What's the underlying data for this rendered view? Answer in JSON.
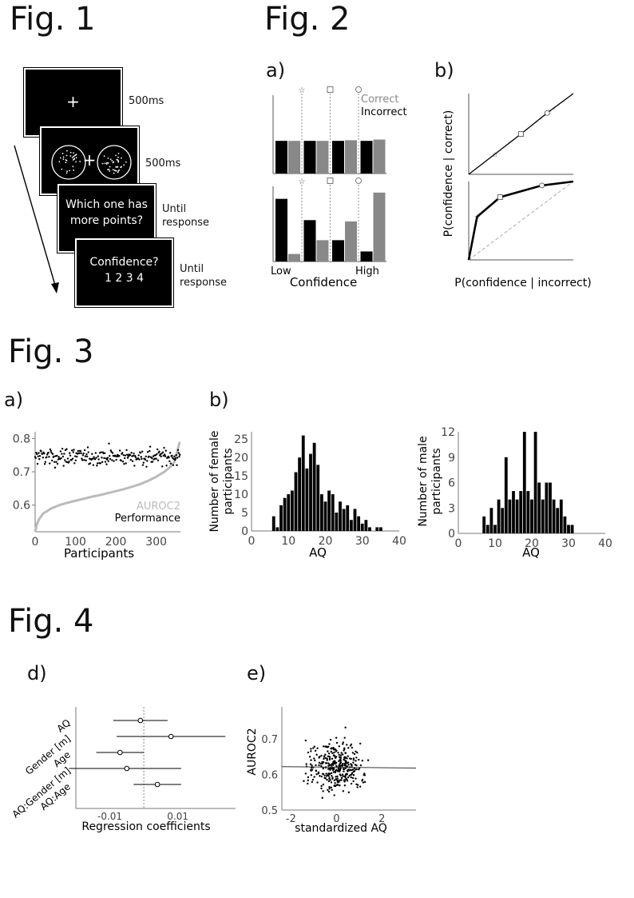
{
  "fig1": {
    "title": "Fig. 1",
    "screens": [
      {
        "text": "+",
        "timing": "500ms"
      },
      {
        "text": "+",
        "timing": "500ms"
      },
      {
        "text": "Which one has\nmore points?",
        "timing": "Until\nresponse"
      },
      {
        "text": "Confidence?\n1 2 3 4",
        "timing": "Until\nresponse"
      }
    ]
  },
  "fig2": {
    "title": "Fig. 2",
    "panel_a": "a)",
    "panel_b": "b)",
    "legend_correct": "Correct",
    "legend_incorrect": "Incorrect",
    "low": "Low",
    "high": "High",
    "xlabel_a": "Confidence",
    "ylabel_b": "P(confidence | correct)",
    "xlabel_b": "P(confidence | incorrect)"
  },
  "fig3": {
    "title": "Fig. 3",
    "panel_a": "a)",
    "panel_b": "b)",
    "a_xlabel": "Participants",
    "a_legend_auroc": "AUROC2",
    "a_legend_perf": "Performance",
    "female_ylabel": "Number of female\nparticipants",
    "male_ylabel": "Number of male\nparticipants",
    "hist_xlabel": "AQ"
  },
  "fig4": {
    "title": "Fig. 4",
    "panel_d": "d)",
    "panel_e": "e)",
    "d_xlabel": "Regression coefficients",
    "e_xlabel": "standardized AQ",
    "e_ylabel": "AUROC2"
  },
  "colors": {
    "correct": "#888888",
    "incorrect": "#000000",
    "auroc": "#bbbbbb"
  },
  "chart_data": [
    {
      "type": "bar",
      "id": "fig2a_top",
      "categories": [
        "1",
        "2",
        "3",
        "4"
      ],
      "series": [
        {
          "name": "Incorrect",
          "values": [
            0.25,
            0.25,
            0.25,
            0.25
          ]
        },
        {
          "name": "Correct",
          "values": [
            0.25,
            0.25,
            0.255,
            0.26
          ]
        }
      ],
      "ylim": [
        0,
        0.6
      ]
    },
    {
      "type": "bar",
      "id": "fig2a_bottom",
      "categories": [
        "1",
        "2",
        "3",
        "4"
      ],
      "series": [
        {
          "name": "Incorrect",
          "values": [
            0.5,
            0.33,
            0.17,
            0.08
          ]
        },
        {
          "name": "Correct",
          "values": [
            0.06,
            0.17,
            0.32,
            0.55
          ]
        }
      ],
      "xlabel": "Confidence",
      "ylim": [
        0,
        0.6
      ]
    },
    {
      "type": "line",
      "id": "fig2b_top",
      "x": [
        0,
        0.25,
        0.5,
        0.75,
        1
      ],
      "y": [
        0,
        0.25,
        0.5,
        0.76,
        1
      ],
      "xlim": [
        0,
        1
      ],
      "ylim": [
        0,
        1
      ]
    },
    {
      "type": "line",
      "id": "fig2b_bottom",
      "x": [
        0,
        0.08,
        0.3,
        0.7,
        1
      ],
      "y": [
        0,
        0.55,
        0.8,
        0.95,
        1
      ],
      "ylabel": "P(confidence | correct)",
      "xlabel": "P(confidence | incorrect)",
      "xlim": [
        0,
        1
      ],
      "ylim": [
        0,
        1
      ]
    },
    {
      "type": "scatter",
      "id": "fig3a",
      "xlabel": "Participants",
      "xlim": [
        0,
        360
      ],
      "ylim": [
        0.52,
        0.82
      ],
      "xticks": [
        0,
        100,
        200,
        300
      ],
      "yticks": [
        0.6,
        0.7,
        0.8
      ],
      "series": [
        {
          "name": "AUROC2",
          "x": [
            0,
            5,
            10,
            20,
            40,
            60,
            80,
            100,
            120,
            140,
            160,
            180,
            200,
            220,
            240,
            260,
            280,
            300,
            320,
            335,
            345,
            352,
            358
          ],
          "y": [
            0.52,
            0.545,
            0.558,
            0.575,
            0.59,
            0.6,
            0.607,
            0.613,
            0.619,
            0.625,
            0.63,
            0.636,
            0.642,
            0.648,
            0.655,
            0.663,
            0.673,
            0.685,
            0.7,
            0.715,
            0.73,
            0.76,
            0.79
          ]
        },
        {
          "name": "Performance",
          "mean": 0.745,
          "range": [
            0.695,
            0.8
          ]
        }
      ]
    },
    {
      "type": "bar",
      "id": "fig3b_female",
      "ylabel": "Number of female participants",
      "xlabel": "AQ",
      "xlim": [
        0,
        40
      ],
      "ylim": [
        0,
        27
      ],
      "xticks": [
        0,
        10,
        20,
        30,
        40
      ],
      "yticks": [
        0,
        5,
        10,
        15,
        20,
        25
      ],
      "x": [
        6,
        7,
        8,
        9,
        10,
        11,
        12,
        13,
        14,
        15,
        16,
        17,
        18,
        19,
        20,
        21,
        22,
        23,
        24,
        25,
        26,
        27,
        28,
        29,
        30,
        31,
        32,
        33,
        34,
        35
      ],
      "values": [
        4,
        1,
        7,
        9,
        10,
        11,
        16,
        20,
        26,
        17,
        21,
        24,
        18,
        10,
        8,
        11,
        10,
        5,
        8,
        6,
        7,
        3,
        6,
        4,
        2,
        3,
        1,
        0,
        1,
        1
      ]
    },
    {
      "type": "bar",
      "id": "fig3b_male",
      "ylabel": "Number of male participants",
      "xlabel": "AQ",
      "xlim": [
        0,
        40
      ],
      "ylim": [
        0,
        12
      ],
      "xticks": [
        0,
        10,
        20,
        30,
        40
      ],
      "yticks": [
        0,
        3,
        6,
        9,
        12
      ],
      "x": [
        7,
        8,
        9,
        10,
        11,
        12,
        13,
        14,
        15,
        16,
        17,
        18,
        19,
        20,
        21,
        22,
        23,
        24,
        25,
        26,
        27,
        28,
        29,
        30,
        31
      ],
      "values": [
        2,
        1,
        3,
        1,
        4,
        3,
        9,
        4,
        5,
        4,
        5,
        12,
        5,
        4,
        12,
        6,
        4,
        6,
        6,
        4,
        3,
        4,
        2,
        1,
        1
      ]
    },
    {
      "type": "scatter",
      "id": "fig4d",
      "xlabel": "Regression coefficients",
      "categories": [
        "AQ",
        "Gender [m]",
        "Age",
        "AQ:Gender [m]",
        "AQ:Age"
      ],
      "estimate": [
        -0.001,
        0.008,
        -0.007,
        -0.005,
        0.004
      ],
      "ci_low": [
        -0.009,
        -0.008,
        -0.014,
        -0.022,
        -0.003
      ],
      "ci_high": [
        0.007,
        0.024,
        0.0,
        0.011,
        0.011
      ],
      "xticks": [
        -0.01,
        0.01
      ],
      "xlim": [
        -0.02,
        0.027
      ]
    },
    {
      "type": "scatter",
      "id": "fig4e",
      "xlabel": "standardized AQ",
      "ylabel": "AUROC2",
      "xlim": [
        -2.4,
        3.5
      ],
      "ylim": [
        0.5,
        0.79
      ],
      "xticks": [
        -2,
        0,
        2
      ],
      "yticks": [
        0.5,
        0.6,
        0.7
      ],
      "fit": {
        "x": [
          -2.4,
          3.5
        ],
        "y": [
          0.622,
          0.618
        ]
      }
    }
  ]
}
